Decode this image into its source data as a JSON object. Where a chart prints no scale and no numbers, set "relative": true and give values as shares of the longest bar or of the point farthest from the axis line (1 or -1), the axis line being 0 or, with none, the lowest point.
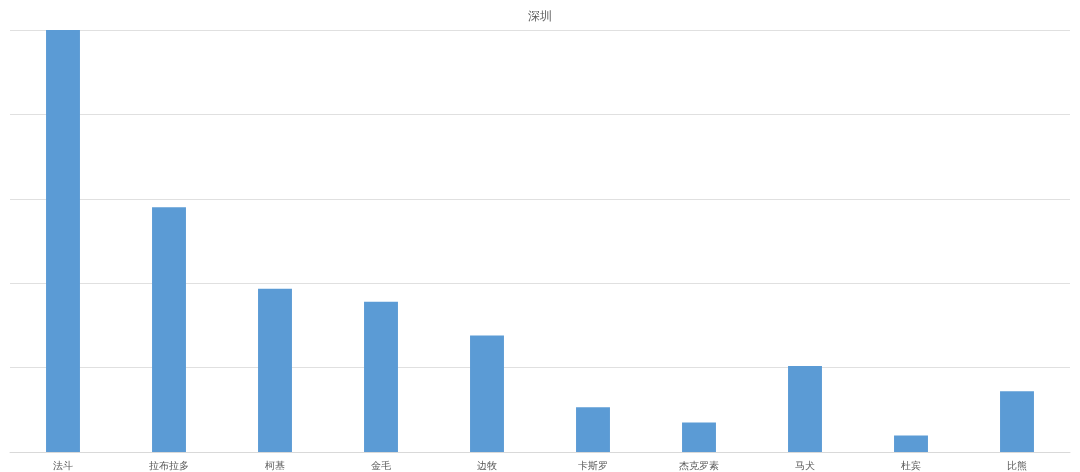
{
  "chart_data": {
    "type": "bar",
    "title": "深圳",
    "categories": [
      "法斗",
      "拉布拉多",
      "柯基",
      "金毛",
      "边牧",
      "卡斯罗",
      "杰克罗素",
      "马犬",
      "杜宾",
      "比熊"
    ],
    "values": [
      1,
      0.58,
      0.387,
      0.356,
      0.276,
      0.106,
      0.07,
      0.204,
      0.039,
      0.144
    ],
    "color": "#5b9bd5",
    "relative": true,
    "grid": "y"
  }
}
